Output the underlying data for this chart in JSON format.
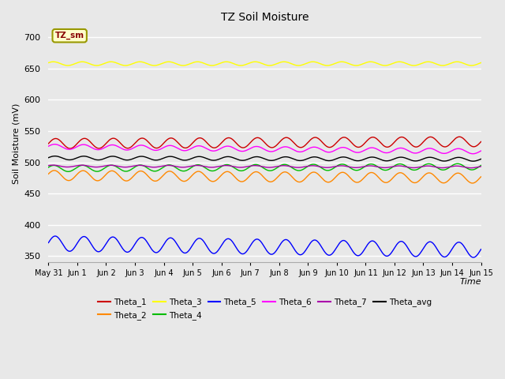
{
  "title": "TZ Soil Moisture",
  "ylabel": "Soil Moisture (mV)",
  "xlabel": "Time",
  "annotation": "TZ_sm",
  "x_tick_labels": [
    "May 31",
    "Jun 1",
    "Jun 2",
    "Jun 3",
    "Jun 4",
    "Jun 5",
    "Jun 6",
    "Jun 7",
    "Jun 8",
    "Jun 9",
    "Jun 10",
    "Jun 11",
    "Jun 12",
    "Jun 13",
    "Jun 14",
    "Jun 15"
  ],
  "ylim": [
    340,
    720
  ],
  "yticks": [
    350,
    400,
    450,
    500,
    550,
    600,
    650,
    700
  ],
  "series": {
    "Theta_1": {
      "color": "#cc0000",
      "base": 530,
      "amp": 8,
      "period": 1.0,
      "phase": 0.0,
      "trend": 0.2
    },
    "Theta_2": {
      "color": "#ff8800",
      "base": 479,
      "amp": 8,
      "period": 1.0,
      "phase": 0.3,
      "trend": -0.3
    },
    "Theta_3": {
      "color": "#ffff00",
      "base": 658,
      "amp": 3,
      "period": 1.0,
      "phase": 0.5,
      "trend": 0.0
    },
    "Theta_4": {
      "color": "#00bb00",
      "base": 490,
      "amp": 5,
      "period": 1.0,
      "phase": 0.4,
      "trend": 0.2
    },
    "Theta_5": {
      "color": "#0000ff",
      "base": 370,
      "amp": 12,
      "period": 1.0,
      "phase": 0.1,
      "trend": -0.7
    },
    "Theta_6": {
      "color": "#ff00ff",
      "base": 525,
      "amp": 4,
      "period": 1.0,
      "phase": 0.2,
      "trend": -0.5
    },
    "Theta_7": {
      "color": "#aa00aa",
      "base": 494,
      "amp": 1.5,
      "period": 1.0,
      "phase": 0.6,
      "trend": -0.1
    },
    "Theta_avg": {
      "color": "#000000",
      "base": 507,
      "amp": 3,
      "period": 1.0,
      "phase": 0.15,
      "trend": -0.15
    }
  },
  "bg_color": "#e8e8e8",
  "plot_bg_color": "#e8e8e8",
  "grid_color": "#ffffff",
  "legend_order": [
    "Theta_1",
    "Theta_2",
    "Theta_3",
    "Theta_4",
    "Theta_5",
    "Theta_6",
    "Theta_7",
    "Theta_avg"
  ]
}
